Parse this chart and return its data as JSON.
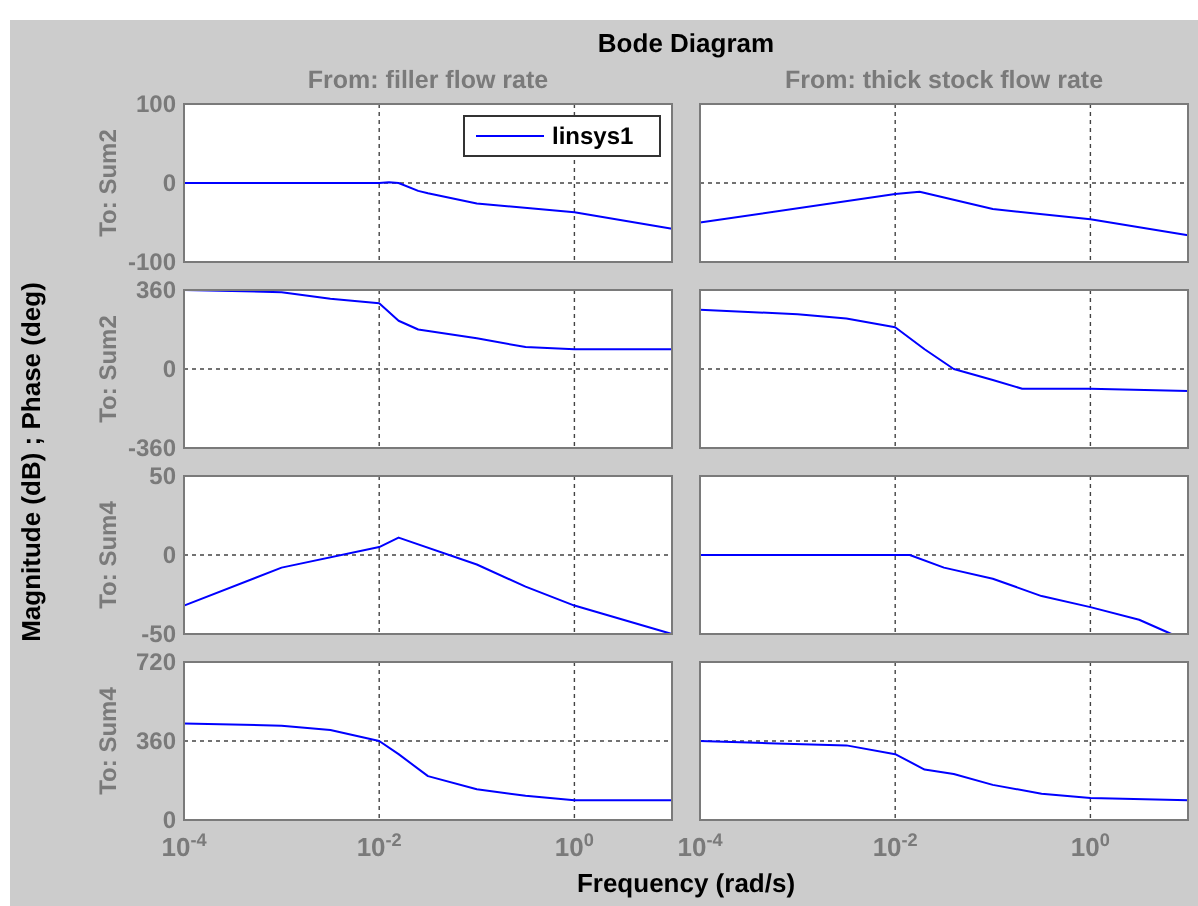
{
  "chart_data": [
    {
      "type": "line",
      "title": "Bode Diagram",
      "subtitle": "From: filler flow rate",
      "ylabel": "To: Sum2",
      "annotations": [
        "Magnitude (dB) ; Phase (deg)"
      ],
      "log": "x",
      "grid": true,
      "legend": "top right",
      "tick_labels": "y",
      "xlim": [
        0.0001,
        10
      ],
      "ylim": [
        -100,
        100
      ],
      "xticks": [
        {
          "value": 0.0001,
          "label": null
        },
        {
          "value": 0.01,
          "label": null
        },
        {
          "value": 1,
          "label": null
        }
      ],
      "yticks": [
        -100,
        0,
        100
      ],
      "x": [
        0.0001,
        0.01,
        0.0126,
        0.0158,
        0.0251,
        0.0316,
        0.1,
        1,
        10
      ],
      "series": [
        {
          "name": "linsys1",
          "color": "#0000ff",
          "values": [
            0,
            0,
            1,
            0,
            -10,
            -13,
            -26,
            -37,
            -58
          ]
        }
      ]
    },
    {
      "type": "line",
      "subtitle": "From: thick stock flow rate",
      "log": "x",
      "grid": true,
      "tick_labels": false,
      "xlim": [
        0.0001,
        10
      ],
      "ylim": [
        -100,
        100
      ],
      "xticks": [
        {
          "value": 0.0001,
          "label": null
        },
        {
          "value": 0.01,
          "label": null
        },
        {
          "value": 1,
          "label": null
        }
      ],
      "yticks": [
        {
          "value": -100,
          "label": null
        },
        {
          "value": 0,
          "label": null
        },
        {
          "value": 100,
          "label": null
        }
      ],
      "x": [
        0.0001,
        0.01,
        0.0178,
        0.1,
        1,
        10
      ],
      "series": [
        {
          "color": "#0000ff",
          "values": [
            -50,
            -14,
            -11,
            -33,
            -46,
            -66
          ]
        }
      ]
    },
    {
      "type": "line",
      "ylabel": "To: Sum2",
      "log": "x",
      "grid": true,
      "tick_labels": "y",
      "xlim": [
        0.0001,
        10
      ],
      "ylim": [
        -360,
        360
      ],
      "xticks": [
        {
          "value": 0.0001,
          "label": null
        },
        {
          "value": 0.01,
          "label": null
        },
        {
          "value": 1,
          "label": null
        }
      ],
      "yticks": [
        -360,
        0,
        360
      ],
      "x": [
        0.0001,
        0.001,
        0.00316,
        0.01,
        0.0158,
        0.0251,
        0.1,
        0.316,
        1,
        10
      ],
      "series": [
        {
          "color": "#0000ff",
          "values": [
            360,
            350,
            320,
            300,
            220,
            180,
            140,
            100,
            90,
            90
          ]
        }
      ]
    },
    {
      "type": "line",
      "log": "x",
      "grid": true,
      "tick_labels": false,
      "xlim": [
        0.0001,
        10
      ],
      "ylim": [
        -360,
        360
      ],
      "xticks": [
        {
          "value": 0.0001,
          "label": null
        },
        {
          "value": 0.01,
          "label": null
        },
        {
          "value": 1,
          "label": null
        }
      ],
      "yticks": [
        {
          "value": -360,
          "label": null
        },
        {
          "value": 0,
          "label": null
        },
        {
          "value": 360,
          "label": null
        }
      ],
      "x": [
        0.0001,
        0.001,
        0.00316,
        0.01,
        0.02,
        0.0398,
        0.1,
        0.2,
        1,
        10
      ],
      "series": [
        {
          "color": "#0000ff",
          "values": [
            270,
            250,
            230,
            190,
            90,
            0,
            -50,
            -90,
            -90,
            -100
          ]
        }
      ]
    },
    {
      "type": "line",
      "ylabel": "To: Sum4",
      "log": "x",
      "grid": true,
      "tick_labels": "y",
      "xlim": [
        0.0001,
        10
      ],
      "ylim": [
        -50,
        50
      ],
      "xticks": [
        {
          "value": 0.0001,
          "label": null
        },
        {
          "value": 0.01,
          "label": null
        },
        {
          "value": 1,
          "label": null
        }
      ],
      "yticks": [
        -50,
        0,
        50
      ],
      "x": [
        0.0001,
        0.001,
        0.01,
        0.0158,
        0.1,
        0.316,
        1,
        10
      ],
      "series": [
        {
          "color": "#0000ff",
          "values": [
            -32,
            -8,
            5,
            11,
            -6,
            -20,
            -32,
            -50
          ]
        }
      ]
    },
    {
      "type": "line",
      "log": "x",
      "grid": true,
      "tick_labels": false,
      "xlim": [
        0.0001,
        10
      ],
      "ylim": [
        -50,
        50
      ],
      "xticks": [
        {
          "value": 0.0001,
          "label": null
        },
        {
          "value": 0.01,
          "label": null
        },
        {
          "value": 1,
          "label": null
        }
      ],
      "yticks": [
        {
          "value": -50,
          "label": null
        },
        {
          "value": 0,
          "label": null
        },
        {
          "value": 50,
          "label": null
        }
      ],
      "x": [
        0.0001,
        0.0141,
        0.0316,
        0.1,
        0.316,
        1,
        3.16,
        6.76
      ],
      "series": [
        {
          "color": "#0000ff",
          "values": [
            0,
            0,
            -8,
            -15,
            -26,
            -33,
            -41,
            -50
          ]
        }
      ]
    },
    {
      "type": "line",
      "ylabel": "To: Sum4",
      "xlabel": "Frequency  (rad/s)",
      "log": "x",
      "grid": true,
      "xlim": [
        0.0001,
        10
      ],
      "ylim": [
        0,
        720
      ],
      "xticks": [
        {
          "value": 0.0001,
          "label": "10$^{-4}$"
        },
        {
          "value": 0.01,
          "label": "10$^{-2}$"
        },
        {
          "value": 1,
          "label": "10$^{0}$"
        }
      ],
      "yticks": [
        0,
        360,
        720
      ],
      "x": [
        0.0001,
        0.001,
        0.00316,
        0.01,
        0.0158,
        0.0316,
        0.1,
        0.316,
        1,
        10
      ],
      "series": [
        {
          "color": "#0000ff",
          "values": [
            440,
            430,
            410,
            360,
            300,
            200,
            140,
            110,
            90,
            90
          ]
        }
      ]
    },
    {
      "type": "line",
      "log": "x",
      "grid": true,
      "tick_labels": "x",
      "xlim": [
        0.0001,
        10
      ],
      "ylim": [
        0,
        720
      ],
      "xticks": [
        {
          "value": 0.0001,
          "label": "10$^{-4}$"
        },
        {
          "value": 0.01,
          "label": "10$^{-2}$"
        },
        {
          "value": 1,
          "label": "10$^{0}$"
        }
      ],
      "yticks": [
        {
          "value": 0,
          "label": null
        },
        {
          "value": 360,
          "label": null
        },
        {
          "value": 720,
          "label": null
        }
      ],
      "x": [
        0.0001,
        0.0005,
        0.00316,
        0.01,
        0.02,
        0.0398,
        0.1,
        0.316,
        1,
        10
      ],
      "series": [
        {
          "color": "#0000ff",
          "values": [
            360,
            350,
            340,
            300,
            230,
            210,
            160,
            120,
            100,
            90
          ]
        }
      ]
    }
  ]
}
